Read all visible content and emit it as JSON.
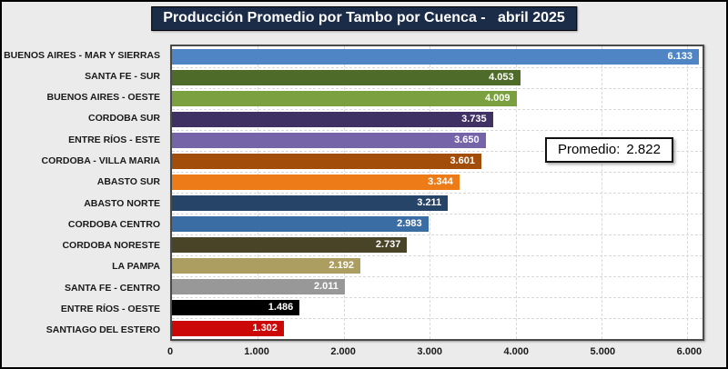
{
  "title": "Producción Promedio por Tambo por Cuenca -   abril 2025",
  "annotation": {
    "label": "Promedio:",
    "value": "2.822"
  },
  "colors": {
    "canvas_background": "#EBEBEB",
    "title_background": "#1B2C48",
    "title_text": "#FFFFFF",
    "plot_background": "#FFFFFF",
    "plot_border": "#4A4A4A",
    "gridline": "#D8D8D8",
    "axis_text": "#1A1A1A",
    "bar_value_text": "#FFFFFF"
  },
  "chart_data": {
    "type": "bar",
    "orientation": "horizontal",
    "title": "Producción Promedio por Tambo por Cuenca - abril 2025",
    "categories": [
      "BUENOS AIRES - MAR Y SIERRAS",
      "SANTA FE - SUR",
      "BUENOS AIRES - OESTE",
      "CORDOBA SUR",
      "ENTRE RÍOS - ESTE",
      "CORDOBA - VILLA MARIA",
      "ABASTO SUR",
      "ABASTO NORTE",
      "CORDOBA CENTRO",
      "CORDOBA NORESTE",
      "LA PAMPA",
      "SANTA FE - CENTRO",
      "ENTRE RÍOS - OESTE",
      "SANTIAGO DEL ESTERO"
    ],
    "values": [
      6133,
      4053,
      4009,
      3735,
      3650,
      3601,
      3344,
      3211,
      2983,
      2737,
      2192,
      2011,
      1486,
      1302
    ],
    "value_labels": [
      "6.133",
      "4.053",
      "4.009",
      "3.735",
      "3.650",
      "3.601",
      "3.344",
      "3.211",
      "2.983",
      "2.737",
      "2.192",
      "2.011",
      "1.486",
      "1.302"
    ],
    "bar_colors": [
      "#4F85C5",
      "#4F6B2A",
      "#7AA03F",
      "#3F3163",
      "#7565A8",
      "#A24D0A",
      "#EC7B18",
      "#254467",
      "#3A6DA3",
      "#494428",
      "#AC9E60",
      "#989898",
      "#000000",
      "#CC0707"
    ],
    "average": 2822,
    "average_label": "Promedio:  2.822",
    "x_ticks": [
      "0",
      "1.000",
      "2.000",
      "3.000",
      "4.000",
      "5.000",
      "6.000"
    ],
    "x_tick_values": [
      0,
      1000,
      2000,
      3000,
      4000,
      5000,
      6000
    ],
    "xlim": [
      0,
      6175
    ],
    "grid": "dashed-vertical-and-horizontal",
    "legend": "none",
    "value_label_position": "inside-end"
  }
}
